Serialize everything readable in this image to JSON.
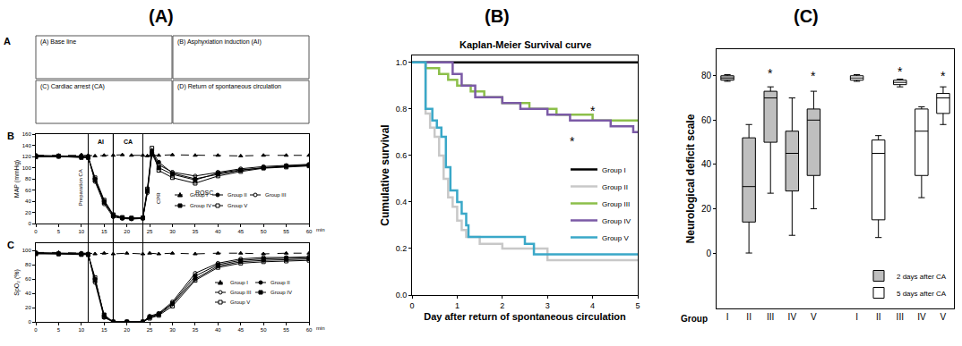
{
  "panel_labels": [
    "(A)",
    "(B)",
    "(C)"
  ],
  "ecg": {
    "label": "A",
    "titles": [
      "(A) Base line",
      "(B) Asphyxiation induction (AI)",
      "(C) Cardiac arrest (CA)",
      "(D) Return of spontaneous circulation"
    ]
  },
  "chart_data": [
    {
      "type": "line",
      "label": "B",
      "ylabel": "MAP (mmHg)",
      "xlabel": "min",
      "grid": false,
      "x": [
        0,
        5,
        10,
        11.5,
        13,
        15,
        17,
        19,
        21,
        23.5,
        24.5,
        25.5,
        27,
        30,
        35,
        40,
        45,
        50,
        55,
        60
      ],
      "xlim": [
        0,
        60
      ],
      "xticks": [
        0,
        5,
        10,
        15,
        20,
        25,
        30,
        35,
        40,
        45,
        50,
        55,
        60
      ],
      "ylim": [
        0,
        160
      ],
      "yticks": [
        0,
        20,
        40,
        60,
        80,
        100,
        120,
        140,
        160
      ],
      "phases": [
        {
          "label": "AI",
          "start": 11.5,
          "end": 17
        },
        {
          "label": "CA",
          "start": 17,
          "end": 23.5
        }
      ],
      "annotations": [
        {
          "text": "ROSC",
          "x": 37,
          "y": 55
        }
      ],
      "vertical_annotations": [
        {
          "text": "Preparation CA",
          "x": 10,
          "y": 65
        },
        {
          "text": "CPR",
          "x": 27,
          "y": 45
        }
      ],
      "series": [
        {
          "name": "Group I",
          "color": "#000000",
          "marker": "triangle-up",
          "line_style": "dash",
          "values": [
            122,
            122,
            123,
            122,
            121,
            122,
            122,
            123,
            122,
            122,
            121,
            122,
            122,
            123,
            122,
            122,
            121,
            122,
            122,
            122
          ]
        },
        {
          "name": "Group II",
          "color": "#000000",
          "marker": "circle",
          "line_style": "solid",
          "values": [
            120,
            120,
            119,
            118,
            80,
            40,
            15,
            10,
            9,
            10,
            60,
            130,
            110,
            90,
            80,
            88,
            95,
            100,
            102,
            104
          ]
        },
        {
          "name": "Group III",
          "color": "#000000",
          "marker": "circle-open",
          "line_style": "solid",
          "values": [
            122,
            121,
            120,
            120,
            75,
            35,
            12,
            9,
            8,
            9,
            55,
            128,
            105,
            92,
            85,
            92,
            98,
            102,
            104,
            106
          ]
        },
        {
          "name": "Group IV",
          "color": "#000000",
          "marker": "square",
          "line_style": "solid",
          "values": [
            119,
            120,
            118,
            118,
            78,
            38,
            14,
            10,
            9,
            10,
            58,
            125,
            100,
            88,
            78,
            90,
            96,
            100,
            103,
            105
          ]
        },
        {
          "name": "Group V",
          "color": "#000000",
          "marker": "square-open",
          "line_style": "solid",
          "values": [
            121,
            121,
            120,
            119,
            82,
            42,
            16,
            11,
            10,
            10,
            62,
            135,
            95,
            82,
            72,
            85,
            93,
            99,
            101,
            103
          ]
        }
      ]
    },
    {
      "type": "line",
      "label": "C",
      "ylabel": "SpO₂ (%)",
      "xlabel": "min",
      "grid": false,
      "x": [
        0,
        5,
        10,
        11.5,
        13,
        15,
        17,
        20,
        23.5,
        25,
        27,
        30,
        35,
        40,
        45,
        50,
        55,
        60
      ],
      "xlim": [
        0,
        60
      ],
      "xticks": [
        0,
        5,
        10,
        15,
        20,
        25,
        30,
        35,
        40,
        45,
        50,
        55,
        60
      ],
      "ylim": [
        0,
        110
      ],
      "yticks": [
        0,
        20,
        40,
        60,
        80,
        100
      ],
      "series": [
        {
          "name": "Group I",
          "color": "#000000",
          "marker": "triangle-up",
          "line_style": "dash",
          "values": [
            97,
            97,
            96,
            96,
            95,
            96,
            95,
            96,
            95,
            96,
            95,
            96,
            95,
            96,
            96,
            95,
            96,
            96
          ]
        },
        {
          "name": "Group II",
          "color": "#000000",
          "marker": "circle",
          "line_style": "solid",
          "values": [
            96,
            96,
            95,
            94,
            60,
            8,
            0,
            0,
            0,
            6,
            10,
            25,
            60,
            78,
            84,
            86,
            87,
            88
          ]
        },
        {
          "name": "Group III",
          "color": "#000000",
          "marker": "circle-open",
          "line_style": "solid",
          "values": [
            97,
            96,
            96,
            95,
            55,
            6,
            0,
            0,
            0,
            8,
            12,
            28,
            68,
            82,
            88,
            90,
            90,
            91
          ]
        },
        {
          "name": "Group IV",
          "color": "#000000",
          "marker": "square",
          "line_style": "solid",
          "values": [
            95,
            95,
            94,
            94,
            58,
            10,
            0,
            0,
            0,
            7,
            11,
            26,
            64,
            80,
            86,
            88,
            89,
            89
          ]
        },
        {
          "name": "Group V",
          "color": "#000000",
          "marker": "square-open",
          "line_style": "solid",
          "values": [
            96,
            95,
            95,
            94,
            62,
            7,
            0,
            0,
            0,
            5,
            9,
            22,
            58,
            76,
            82,
            84,
            85,
            86
          ]
        }
      ]
    },
    {
      "type": "line",
      "title": "Kaplan-Meier Survival curve",
      "xlabel": "Day after return of spontaneous circulation",
      "ylabel": "Cumulative survival",
      "line_style": "step",
      "legend": "bottom right",
      "grid": false,
      "xlim": [
        0,
        5
      ],
      "xticks": [
        0,
        1,
        2,
        3,
        4,
        5
      ],
      "ylim": [
        0,
        1.03
      ],
      "yticks": [
        {
          "value": 0,
          "label": "0.0"
        },
        0.2,
        0.4,
        0.6,
        0.8,
        {
          "value": 1,
          "label": "1.0"
        }
      ],
      "annotations": [
        {
          "text": "*",
          "x": 4,
          "y": 0.79
        },
        {
          "text": "*",
          "x": 3.55,
          "y": 0.66
        }
      ],
      "series": [
        {
          "name": "Group I",
          "color": "#000000",
          "x": [
            0,
            5
          ],
          "values": [
            1,
            1
          ]
        },
        {
          "name": "Group II",
          "color": "#c8c8c8",
          "x": [
            0,
            0.3,
            0.4,
            0.5,
            0.6,
            0.7,
            0.8,
            0.9,
            1.0,
            1.1,
            1.2,
            1.5,
            2.0,
            3.0,
            5.0
          ],
          "values": [
            1,
            0.78,
            0.72,
            0.68,
            0.6,
            0.5,
            0.42,
            0.38,
            0.32,
            0.28,
            0.25,
            0.22,
            0.2,
            0.15,
            0.15
          ]
        },
        {
          "name": "Group III",
          "color": "#8cbf4a",
          "x": [
            0,
            0.3,
            0.6,
            0.8,
            1.0,
            1.3,
            1.6,
            2.0,
            2.6,
            3.2,
            4.0,
            5.0
          ],
          "values": [
            1,
            0.975,
            0.95,
            0.925,
            0.9,
            0.875,
            0.85,
            0.825,
            0.8,
            0.775,
            0.75,
            0.75
          ]
        },
        {
          "name": "Group IV",
          "color": "#7b5aa6",
          "x": [
            0,
            0.9,
            1.1,
            1.4,
            2.0,
            2.4,
            3.0,
            3.5,
            4.4,
            4.9,
            5.0
          ],
          "values": [
            1,
            0.95,
            0.9,
            0.85,
            0.825,
            0.8,
            0.775,
            0.75,
            0.725,
            0.7,
            0.7
          ]
        },
        {
          "name": "Group V",
          "color": "#3aa8c8",
          "x": [
            0,
            0.3,
            0.45,
            0.55,
            0.65,
            0.75,
            0.85,
            1.0,
            1.1,
            1.2,
            1.25,
            2.5,
            2.7,
            5.0
          ],
          "values": [
            1,
            0.8,
            0.75,
            0.72,
            0.68,
            0.55,
            0.45,
            0.4,
            0.35,
            0.3,
            0.25,
            0.22,
            0.175,
            0.175
          ]
        }
      ]
    },
    {
      "type": "box",
      "ylabel": "Neurological deficit scale",
      "xlabel": "Group",
      "legend": "bottom right",
      "grid": false,
      "categories": [
        "I",
        "II",
        "III",
        "IV",
        "V",
        null,
        "I",
        "II",
        "III",
        "IV",
        "V"
      ],
      "ylim": [
        -25,
        92
      ],
      "yticks": [
        0,
        20,
        40,
        60,
        80
      ],
      "annotations": [
        {
          "text": "*",
          "x": 2,
          "y": 81
        },
        {
          "text": "*",
          "x": 4,
          "y": 80
        },
        {
          "text": "*",
          "x": 8,
          "y": 82
        },
        {
          "text": "*",
          "x": 10,
          "y": 80
        }
      ],
      "series": [
        {
          "name": "2 days after CA",
          "color": "#bfbfbf",
          "min": [
            77.5,
            0,
            27,
            8,
            20,
            null,
            null,
            null,
            null,
            null,
            null
          ],
          "q1": [
            78,
            14,
            50,
            28,
            35,
            null,
            null,
            null,
            null,
            null,
            null
          ],
          "median": [
            79,
            30,
            70,
            45,
            60,
            null,
            null,
            null,
            null,
            null,
            null
          ],
          "q3": [
            80,
            52,
            73,
            55,
            65,
            null,
            null,
            null,
            null,
            null,
            null
          ],
          "max": [
            80.5,
            58,
            75,
            70,
            73,
            null,
            null,
            null,
            null,
            null,
            null
          ]
        },
        {
          "name": "5 days after CA",
          "color": "#ffffff",
          "min": [
            null,
            null,
            null,
            null,
            null,
            null,
            77.5,
            7,
            75,
            25,
            58
          ],
          "q1": [
            null,
            null,
            null,
            null,
            null,
            null,
            78,
            15,
            76,
            35,
            63
          ],
          "median": [
            null,
            null,
            null,
            null,
            null,
            null,
            79,
            45,
            77,
            55,
            70
          ],
          "q3": [
            null,
            null,
            null,
            null,
            null,
            null,
            80,
            51,
            78,
            65,
            72
          ],
          "max": [
            null,
            null,
            null,
            null,
            null,
            null,
            80.5,
            53,
            78.5,
            66,
            75
          ]
        }
      ]
    }
  ]
}
